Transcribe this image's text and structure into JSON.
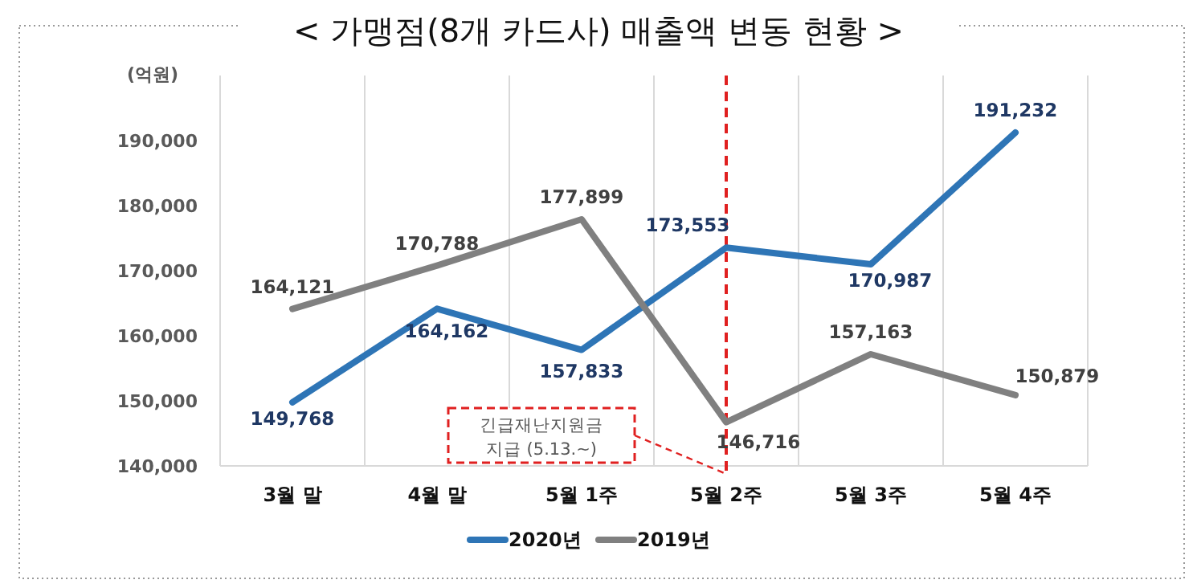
{
  "chart_data": {
    "type": "line",
    "title": "< 가맹점(8개 카드사) 매출액 변동 현황 >",
    "ylabel": "(억원)",
    "categories": [
      "3월 말",
      "4월 말",
      "5월 1주",
      "5월 2주",
      "5월 3주",
      "5월 4주"
    ],
    "series": [
      {
        "name": "2020년",
        "color": "#2e75b6",
        "values": [
          149768,
          164162,
          157833,
          173553,
          170987,
          191232
        ],
        "value_labels": [
          "149,768",
          "164,162",
          "157,833",
          "173,553",
          "170,987",
          "191,232"
        ]
      },
      {
        "name": "2019년",
        "color": "#808080",
        "values": [
          164121,
          170788,
          177899,
          146716,
          157163,
          150879
        ],
        "value_labels": [
          "164,121",
          "170,788",
          "177,899",
          "146,716",
          "157,163",
          "150,879"
        ]
      }
    ],
    "ylim": [
      140000,
      200000
    ],
    "yticks": [
      {
        "value": 140000,
        "label": "140,000"
      },
      {
        "value": 150000,
        "label": "150,000"
      },
      {
        "value": 160000,
        "label": "160,000"
      },
      {
        "value": 170000,
        "label": "170,000"
      },
      {
        "value": 180000,
        "label": "180,000"
      },
      {
        "value": 190000,
        "label": "190,000"
      }
    ],
    "grid": "x",
    "legend": "bottom",
    "line_style": "solid",
    "ref_lines": [
      {
        "axis": "x",
        "value": "5월 2주",
        "color": "#e02020",
        "line_style": "dashed"
      }
    ],
    "annotations": [
      "긴급재난지원금\n지급 (5.13.~)"
    ]
  }
}
